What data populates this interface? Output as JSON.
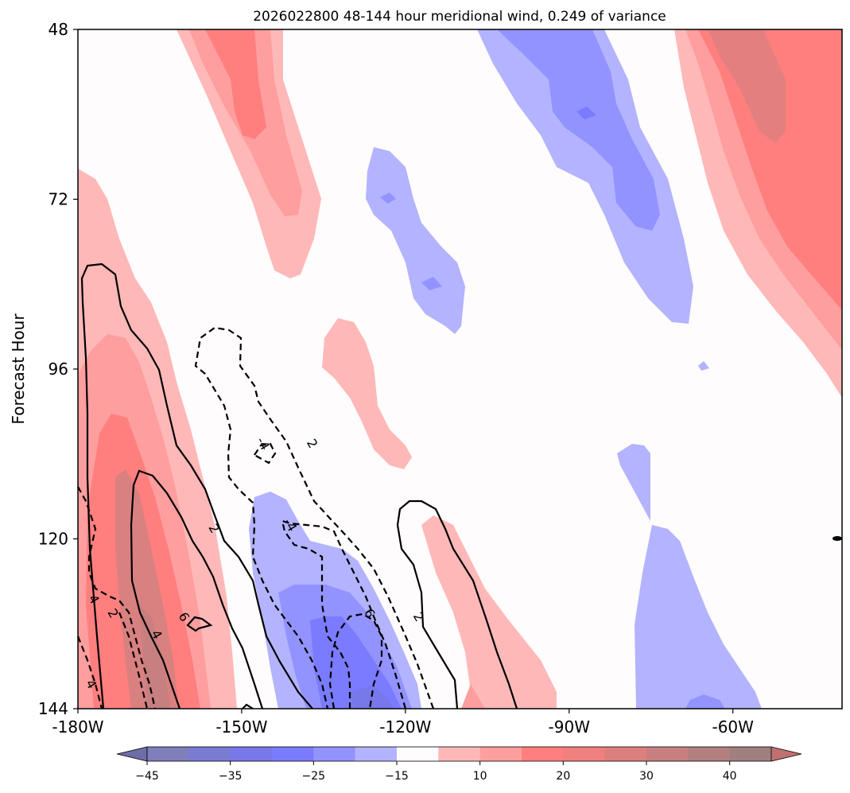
{
  "chart_data": {
    "type": "heatmap",
    "title": "2026022800 48-144 hour meridional wind, 0.249 of variance",
    "ylabel": "Forecast Hour",
    "xlabel": "",
    "x_ticks": [
      {
        "value": -180,
        "label": "-180W"
      },
      {
        "value": -150,
        "label": "-150W"
      },
      {
        "value": -120,
        "label": "-120W"
      },
      {
        "value": -90,
        "label": "-90W"
      },
      {
        "value": -60,
        "label": "-60W"
      }
    ],
    "y_ticks": [
      {
        "value": 48,
        "label": "48"
      },
      {
        "value": 72,
        "label": "72"
      },
      {
        "value": 96,
        "label": "96"
      },
      {
        "value": 120,
        "label": "120"
      },
      {
        "value": 144,
        "label": "144"
      }
    ],
    "xlim": [
      -180,
      -40
    ],
    "ylim": [
      48,
      144
    ],
    "colorbar": {
      "levels": [
        -45,
        -40,
        -35,
        -30,
        -25,
        -20,
        -15,
        -10,
        10,
        15,
        20,
        25,
        30,
        35,
        40,
        45
      ],
      "colors": [
        "#7e7fbb",
        "#7b7bd3",
        "#7878ea",
        "#7b7bff",
        "#9393ff",
        "#b3b3ff",
        "#fefcfc",
        "#ffb8b8",
        "#ff9e9e",
        "#ff7f7f",
        "#f07f7f",
        "#dc7f7f",
        "#c87f7f",
        "#b47f7f",
        "#a07f7f"
      ],
      "under_color": "#6d6da8",
      "over_color": "#c07070",
      "tick_values": [
        -45,
        -35,
        -25,
        -15,
        10,
        20,
        30,
        40
      ],
      "tick_labels": [
        "−45",
        "−35",
        "−25",
        "−15",
        "10",
        "20",
        "30",
        "40"
      ]
    },
    "contour_labels": [
      {
        "text": "-4",
        "lon": -146,
        "hour": 106.5
      },
      {
        "text": "2",
        "lon": -137,
        "hour": 106.5
      },
      {
        "text": "-4",
        "lon": -141,
        "hour": 118
      },
      {
        "text": "2",
        "lon": -155,
        "hour": 118.5
      },
      {
        "text": "6",
        "lon": -160.5,
        "hour": 131
      },
      {
        "text": "6",
        "lon": -126.5,
        "hour": 130.5
      },
      {
        "text": "2",
        "lon": -117.5,
        "hour": 131
      },
      {
        "text": "4",
        "lon": -177,
        "hour": 128.5
      },
      {
        "text": "2",
        "lon": -173.5,
        "hour": 130.5
      },
      {
        "text": "4",
        "lon": -165.5,
        "hour": 133.5
      },
      {
        "text": "4",
        "lon": -177.5,
        "hour": 140.5
      }
    ]
  }
}
